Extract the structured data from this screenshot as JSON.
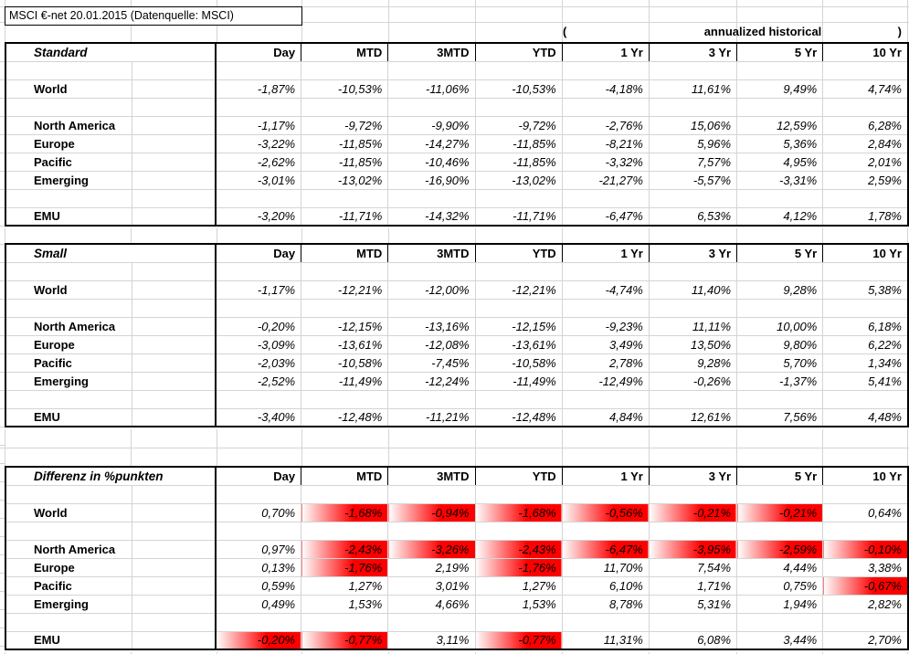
{
  "title": "MSCI €-net 20.01.2015 (Datenquelle: MSCI)",
  "annualized_header": {
    "open_paren": "(",
    "label": "annualized historical",
    "close_paren": ")"
  },
  "columns": [
    "Day",
    "MTD",
    "3MTD",
    "YTD",
    "1 Yr",
    "3 Yr",
    "5 Yr",
    "10 Yr"
  ],
  "colors": {
    "negative_highlight": "#ff0000",
    "gridline": "#d4d4d4",
    "table_border": "#000000",
    "text": "#000000"
  },
  "tables": [
    {
      "name": "Standard",
      "highlight_negative": false,
      "rows": [
        {
          "label": "World",
          "values": [
            "-1,87%",
            "-10,53%",
            "-11,06%",
            "-10,53%",
            "-4,18%",
            "11,61%",
            "9,49%",
            "4,74%"
          ]
        },
        {
          "label": "North America",
          "values": [
            "-1,17%",
            "-9,72%",
            "-9,90%",
            "-9,72%",
            "-2,76%",
            "15,06%",
            "12,59%",
            "6,28%"
          ]
        },
        {
          "label": "Europe",
          "values": [
            "-3,22%",
            "-11,85%",
            "-14,27%",
            "-11,85%",
            "-8,21%",
            "5,96%",
            "5,36%",
            "2,84%"
          ]
        },
        {
          "label": "Pacific",
          "values": [
            "-2,62%",
            "-11,85%",
            "-10,46%",
            "-11,85%",
            "-3,32%",
            "7,57%",
            "4,95%",
            "2,01%"
          ]
        },
        {
          "label": "Emerging",
          "values": [
            "-3,01%",
            "-13,02%",
            "-16,90%",
            "-13,02%",
            "-21,27%",
            "-5,57%",
            "-3,31%",
            "2,59%"
          ]
        },
        {
          "label": "EMU",
          "values": [
            "-3,20%",
            "-11,71%",
            "-14,32%",
            "-11,71%",
            "-6,47%",
            "6,53%",
            "4,12%",
            "1,78%"
          ]
        }
      ]
    },
    {
      "name": "Small",
      "highlight_negative": false,
      "rows": [
        {
          "label": "World",
          "values": [
            "-1,17%",
            "-12,21%",
            "-12,00%",
            "-12,21%",
            "-4,74%",
            "11,40%",
            "9,28%",
            "5,38%"
          ]
        },
        {
          "label": "North America",
          "values": [
            "-0,20%",
            "-12,15%",
            "-13,16%",
            "-12,15%",
            "-9,23%",
            "11,11%",
            "10,00%",
            "6,18%"
          ]
        },
        {
          "label": "Europe",
          "values": [
            "-3,09%",
            "-13,61%",
            "-12,08%",
            "-13,61%",
            "3,49%",
            "13,50%",
            "9,80%",
            "6,22%"
          ]
        },
        {
          "label": "Pacific",
          "values": [
            "-2,03%",
            "-10,58%",
            "-7,45%",
            "-10,58%",
            "2,78%",
            "9,28%",
            "5,70%",
            "1,34%"
          ]
        },
        {
          "label": "Emerging",
          "values": [
            "-2,52%",
            "-11,49%",
            "-12,24%",
            "-11,49%",
            "-12,49%",
            "-0,26%",
            "-1,37%",
            "5,41%"
          ]
        },
        {
          "label": "EMU",
          "values": [
            "-3,40%",
            "-12,48%",
            "-11,21%",
            "-12,48%",
            "4,84%",
            "12,61%",
            "7,56%",
            "4,48%"
          ]
        }
      ]
    },
    {
      "name": "Differenz in %punkten",
      "highlight_negative": true,
      "rows": [
        {
          "label": "World",
          "values": [
            "0,70%",
            "-1,68%",
            "-0,94%",
            "-1,68%",
            "-0,56%",
            "-0,21%",
            "-0,21%",
            "0,64%"
          ]
        },
        {
          "label": "North America",
          "values": [
            "0,97%",
            "-2,43%",
            "-3,26%",
            "-2,43%",
            "-6,47%",
            "-3,95%",
            "-2,59%",
            "-0,10%"
          ]
        },
        {
          "label": "Europe",
          "values": [
            "0,13%",
            "-1,76%",
            "2,19%",
            "-1,76%",
            "11,70%",
            "7,54%",
            "4,44%",
            "3,38%"
          ]
        },
        {
          "label": "Pacific",
          "values": [
            "0,59%",
            "1,27%",
            "3,01%",
            "1,27%",
            "6,10%",
            "1,71%",
            "0,75%",
            "-0,67%"
          ]
        },
        {
          "label": "Emerging",
          "values": [
            "0,49%",
            "1,53%",
            "4,66%",
            "1,53%",
            "8,78%",
            "5,31%",
            "1,94%",
            "2,82%"
          ]
        },
        {
          "label": "EMU",
          "values": [
            "-0,20%",
            "-0,77%",
            "3,11%",
            "-0,77%",
            "11,31%",
            "6,08%",
            "3,44%",
            "2,70%"
          ]
        }
      ]
    }
  ]
}
